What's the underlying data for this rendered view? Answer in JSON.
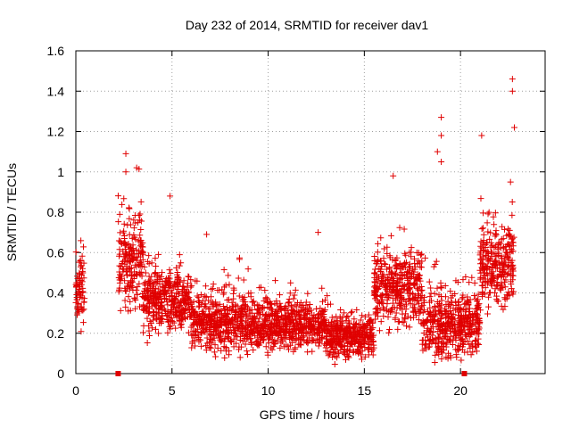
{
  "chart_data": {
    "type": "scatter",
    "title": "Day 232 of 2014, SRMTID for receiver dav1",
    "xlabel": "GPS time / hours",
    "ylabel": "SRMTID / TECUs",
    "xlim": [
      0,
      24.4
    ],
    "ylim": [
      0,
      1.6
    ],
    "grid": true,
    "x_ticks": [
      0,
      5,
      10,
      15,
      20
    ],
    "x_tick_labels": [
      "0",
      "5",
      "10",
      "15",
      "20"
    ],
    "y_ticks": [
      0,
      0.2,
      0.4,
      0.6,
      0.8,
      1.0,
      1.2,
      1.4,
      1.6
    ],
    "y_tick_labels": [
      "0",
      "0.2",
      "0.4",
      "0.6",
      "0.8",
      "1",
      "1.2",
      "1.4",
      "1.6"
    ],
    "marker": "+",
    "color": "#e00000",
    "segments": [
      {
        "x_start": 0.0,
        "x_end": 0.45,
        "mean": 0.42,
        "spread": 0.15
      },
      {
        "x_start": 2.2,
        "x_end": 3.5,
        "mean": 0.55,
        "spread": 0.2
      },
      {
        "x_start": 3.5,
        "x_end": 6.0,
        "mean": 0.36,
        "spread": 0.13
      },
      {
        "x_start": 6.0,
        "x_end": 10.0,
        "mean": 0.25,
        "spread": 0.12
      },
      {
        "x_start": 10.0,
        "x_end": 13.0,
        "mean": 0.24,
        "spread": 0.1
      },
      {
        "x_start": 13.0,
        "x_end": 15.5,
        "mean": 0.18,
        "spread": 0.09
      },
      {
        "x_start": 15.5,
        "x_end": 18.0,
        "mean": 0.42,
        "spread": 0.16
      },
      {
        "x_start": 18.0,
        "x_end": 21.0,
        "mean": 0.25,
        "spread": 0.14
      },
      {
        "x_start": 21.0,
        "x_end": 22.8,
        "mean": 0.55,
        "spread": 0.18
      }
    ],
    "highlighted_points": [
      {
        "x": 2.6,
        "y": 1.09
      },
      {
        "x": 2.6,
        "y": 1.0
      },
      {
        "x": 4.9,
        "y": 0.88
      },
      {
        "x": 16.5,
        "y": 0.98
      },
      {
        "x": 19.0,
        "y": 1.27
      },
      {
        "x": 19.0,
        "y": 1.18
      },
      {
        "x": 19.0,
        "y": 1.05
      },
      {
        "x": 18.8,
        "y": 1.1
      },
      {
        "x": 21.1,
        "y": 1.18
      },
      {
        "x": 22.7,
        "y": 1.46
      },
      {
        "x": 22.7,
        "y": 1.4
      },
      {
        "x": 22.8,
        "y": 1.22
      },
      {
        "x": 22.6,
        "y": 0.95
      },
      {
        "x": 12.6,
        "y": 0.7
      },
      {
        "x": 6.8,
        "y": 0.69
      }
    ],
    "baseline_markers": [
      {
        "x": 2.2,
        "y": 0
      },
      {
        "x": 20.2,
        "y": 0
      }
    ]
  }
}
